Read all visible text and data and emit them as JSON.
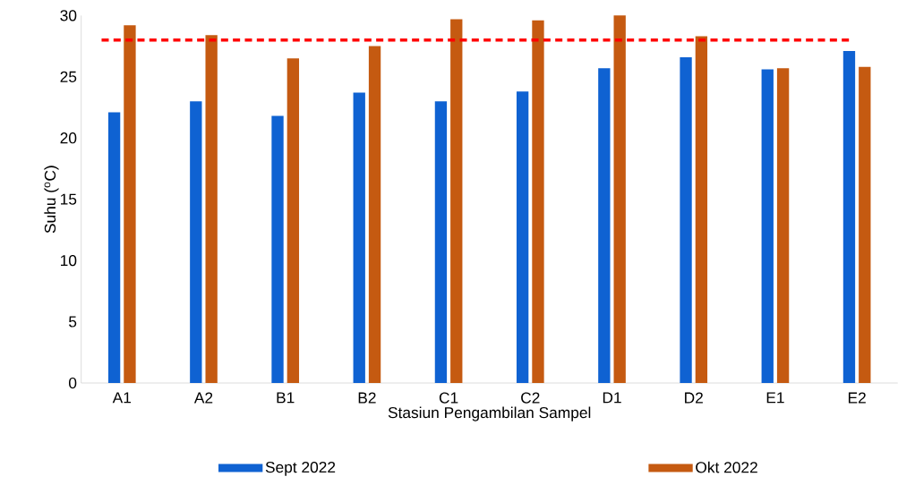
{
  "chart_data": {
    "type": "bar",
    "xlabel": "Stasiun Pengambilan Sampel",
    "ylabel": "Suhu ($^{o}$C)",
    "categories": [
      "A1",
      "A2",
      "B1",
      "B2",
      "C1",
      "C2",
      "D1",
      "D2",
      "E1",
      "E2"
    ],
    "series": [
      {
        "name": "Sept 2022",
        "color": "#0f62d2",
        "values": [
          22.1,
          23.0,
          21.8,
          23.7,
          23.0,
          23.8,
          25.7,
          26.6,
          25.6,
          27.1
        ]
      },
      {
        "name": "Okt 2022",
        "color": "#c55a11",
        "values": [
          29.2,
          28.4,
          26.5,
          27.5,
          29.7,
          29.6,
          30.0,
          28.3,
          25.7,
          25.8
        ]
      }
    ],
    "ylim": [
      0,
      30
    ],
    "yticks": [
      0,
      5,
      10,
      15,
      20,
      25,
      30
    ],
    "ref_lines": [
      {
        "axis": "y",
        "value": 28,
        "color": "#ff0000",
        "line_style": "dashed"
      }
    ],
    "grid": false,
    "legend": "bottom"
  }
}
